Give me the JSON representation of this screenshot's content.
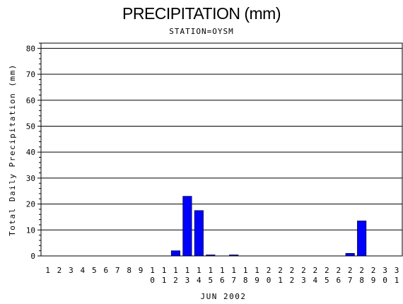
{
  "chart_data": {
    "type": "bar",
    "title": "PRECIPITATION (mm)",
    "subtitle": "STATION=OYSM",
    "xlabel": "JUN 2002",
    "ylabel": "Total Daily Precipitation (mm)",
    "categories": [
      "1",
      "2",
      "3",
      "4",
      "5",
      "6",
      "7",
      "8",
      "9",
      "10",
      "11",
      "12",
      "13",
      "14",
      "15",
      "16",
      "17",
      "18",
      "19",
      "20",
      "21",
      "22",
      "23",
      "24",
      "25",
      "26",
      "27",
      "28",
      "29",
      "30",
      "31"
    ],
    "values": [
      0,
      0,
      0,
      0,
      0,
      0,
      0,
      0,
      0,
      0,
      0,
      2,
      23,
      17.5,
      0.3,
      0,
      0.3,
      0,
      0,
      0,
      0,
      0,
      0,
      0,
      0,
      0,
      1,
      13.5,
      0,
      0,
      0
    ],
    "ylim": [
      0,
      82
    ],
    "yticks": [
      0,
      10,
      20,
      30,
      40,
      50,
      60,
      70,
      80
    ],
    "grid": true,
    "bar_color": "#0000ff"
  }
}
